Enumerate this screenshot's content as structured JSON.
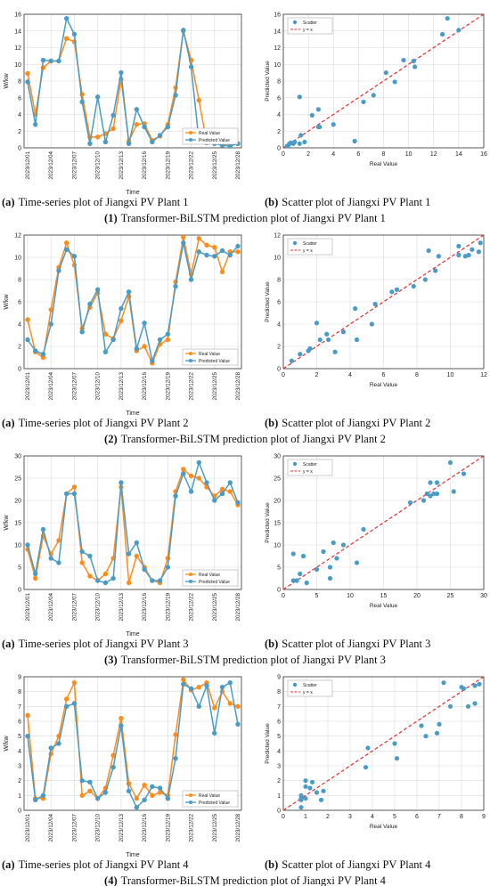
{
  "colors": {
    "real": "#ff8c1a",
    "predicted": "#4a9cc6",
    "scatter": "#4a9cc6",
    "ideal": "#e03030",
    "grid": "#d9d9d9",
    "axis": "#333333"
  },
  "rows": [
    {
      "row_caption_num": "(1)",
      "row_caption_text": "Transformer-BiLSTM prediction plot of Jiangxi PV Plant 1",
      "ts_caption_letter": "(a)",
      "ts_caption_text": "Time-series plot of Jiangxi PV Plant 1",
      "sc_caption_letter": "(b)",
      "sc_caption_text": "Scatter plot of Jiangxi PV Plant 1"
    },
    {
      "row_caption_num": "(2)",
      "row_caption_text": "Transformer-BiLSTM prediction plot of Jiangxi PV Plant 2",
      "ts_caption_letter": "(a)",
      "ts_caption_text": "Time-series plot of Jiangxi PV Plant 2",
      "sc_caption_letter": "(b)",
      "sc_caption_text": "Scatter plot of Jiangxi PV Plant 2"
    },
    {
      "row_caption_num": "(3)",
      "row_caption_text": "Transformer-BiLSTM prediction plot of Jiangxi PV Plant 3",
      "ts_caption_letter": "(a)",
      "ts_caption_text": "Time-series plot of Jiangxi PV Plant 3",
      "sc_caption_letter": "(b)",
      "sc_caption_text": "Scatter plot of Jiangxi PV Plant 3"
    },
    {
      "row_caption_num": "(4)",
      "row_caption_text": "Transformer-BiLSTM prediction plot of Jiangxi PV Plant 4",
      "ts_caption_letter": "(a)",
      "ts_caption_text": "Time-series plot of Jiangxi PV Plant 4",
      "sc_caption_letter": "(b)",
      "sc_caption_text": "Scatter plot of Jiangxi PV Plant 4"
    }
  ],
  "chart_data": [
    {
      "type": "line",
      "panel": "1a",
      "xlabel": "Time",
      "ylabel": "W/kw",
      "ylim": [
        0,
        16
      ],
      "yticks": [
        0,
        2,
        4,
        6,
        8,
        10,
        12,
        14,
        16
      ],
      "xticks": [
        "2023/12/01",
        "2023/12/04",
        "2023/12/07",
        "2023/12/10",
        "2023/12/13",
        "2023/12/16",
        "2023/12/19",
        "2023/12/22",
        "2023/12/25",
        "2023/12/28"
      ],
      "legend": "bottom-right",
      "series": [
        {
          "name": "Real Value",
          "values": [
            8.9,
            4.0,
            9.6,
            10.4,
            10.4,
            13.1,
            12.7,
            6.4,
            1.3,
            1.3,
            1.7,
            2.3,
            8.2,
            0.8,
            2.8,
            2.9,
            0.9,
            1.4,
            2.8,
            7.2,
            14.0,
            10.5,
            5.7,
            0.6,
            0.5,
            0.4,
            0.3,
            0.5
          ]
        },
        {
          "name": "Predicted Value",
          "values": [
            7.9,
            2.8,
            10.5,
            10.4,
            10.4,
            15.5,
            13.6,
            5.5,
            0.5,
            6.1,
            0.7,
            3.9,
            9.0,
            0.5,
            4.6,
            2.5,
            0.7,
            1.5,
            2.5,
            6.3,
            14.1,
            9.7,
            0.8,
            0.6,
            0.5,
            0.3,
            0.2,
            0.5
          ]
        }
      ]
    },
    {
      "type": "scatter",
      "panel": "1b",
      "xlabel": "Real Value",
      "ylabel": "Predicted Value",
      "xlim": [
        0,
        16
      ],
      "ylim": [
        0,
        16
      ],
      "xticks": [
        0,
        2,
        4,
        6,
        8,
        10,
        12,
        14,
        16
      ],
      "yticks": [
        0,
        2,
        4,
        6,
        8,
        10,
        12,
        14,
        16
      ],
      "legend": "top-left",
      "series": [
        {
          "name": "Scatter",
          "x": [
            8.9,
            4.0,
            9.6,
            10.4,
            10.4,
            13.1,
            12.7,
            6.4,
            1.3,
            1.3,
            1.7,
            2.3,
            8.2,
            0.8,
            2.8,
            2.9,
            0.9,
            1.4,
            2.8,
            7.2,
            14.0,
            10.5,
            5.7,
            0.6,
            0.5,
            0.4,
            0.3,
            0.5
          ],
          "y": [
            7.9,
            2.8,
            10.5,
            10.4,
            10.4,
            15.5,
            13.6,
            5.5,
            0.5,
            6.1,
            0.7,
            3.9,
            9.0,
            0.5,
            4.6,
            2.5,
            0.7,
            1.5,
            2.5,
            6.3,
            14.1,
            9.7,
            0.8,
            0.6,
            0.5,
            0.3,
            0.2,
            0.5
          ]
        },
        {
          "name": "y = x",
          "x": [
            0,
            16
          ],
          "y": [
            0,
            16
          ]
        }
      ]
    },
    {
      "type": "line",
      "panel": "2a",
      "xlabel": "Time",
      "ylabel": "W/kw",
      "ylim": [
        0,
        12
      ],
      "yticks": [
        0,
        2,
        4,
        6,
        8,
        10,
        12
      ],
      "xticks": [
        "2023/12/01",
        "2023/12/04",
        "2023/12/07",
        "2023/12/10",
        "2023/12/13",
        "2023/12/16",
        "2023/12/19",
        "2023/12/22",
        "2023/12/25",
        "2023/12/28"
      ],
      "legend": "bottom-right",
      "series": [
        {
          "name": "Real Value",
          "values": [
            4.4,
            1.5,
            1.0,
            5.3,
            9.1,
            11.3,
            9.3,
            3.6,
            5.5,
            6.8,
            3.1,
            2.7,
            4.3,
            6.5,
            1.6,
            2.0,
            0.5,
            2.2,
            2.6,
            7.8,
            11.8,
            8.5,
            11.7,
            11.1,
            10.9,
            8.7,
            10.5,
            10.5
          ]
        },
        {
          "name": "Predicted Value",
          "values": [
            2.6,
            1.6,
            1.3,
            4.0,
            8.8,
            10.7,
            10.1,
            3.3,
            5.8,
            7.1,
            1.5,
            2.6,
            5.4,
            6.9,
            1.8,
            4.1,
            0.7,
            2.6,
            3.1,
            7.4,
            11.3,
            8.0,
            10.5,
            10.2,
            10.1,
            10.6,
            10.2,
            11.0
          ]
        }
      ]
    },
    {
      "type": "scatter",
      "panel": "2b",
      "xlabel": "Real Value",
      "ylabel": "Predicted Value",
      "xlim": [
        0,
        12
      ],
      "ylim": [
        0,
        12
      ],
      "xticks": [
        0,
        2,
        4,
        6,
        8,
        10,
        12
      ],
      "yticks": [
        0,
        2,
        4,
        6,
        8,
        10,
        12
      ],
      "legend": "top-left",
      "series": [
        {
          "name": "Scatter",
          "x": [
            4.4,
            1.5,
            1.0,
            5.3,
            9.1,
            11.3,
            9.3,
            3.6,
            5.5,
            6.8,
            3.1,
            2.7,
            4.3,
            6.5,
            1.6,
            2.0,
            0.5,
            2.2,
            2.6,
            7.8,
            11.8,
            8.5,
            11.7,
            11.1,
            10.9,
            8.7,
            10.5,
            10.5
          ],
          "y": [
            2.6,
            1.6,
            1.3,
            4.0,
            8.8,
            10.7,
            10.1,
            3.3,
            5.8,
            7.1,
            1.5,
            2.6,
            5.4,
            6.9,
            1.8,
            4.1,
            0.7,
            2.6,
            3.1,
            7.4,
            11.3,
            8.0,
            10.5,
            10.2,
            10.1,
            10.6,
            10.2,
            11.0
          ]
        },
        {
          "name": "y = x",
          "x": [
            0,
            12
          ],
          "y": [
            0,
            12
          ]
        }
      ]
    },
    {
      "type": "line",
      "panel": "3a",
      "xlabel": "Time",
      "ylabel": "W/kw",
      "ylim": [
        0,
        30
      ],
      "yticks": [
        0,
        5,
        10,
        15,
        20,
        25,
        30
      ],
      "xticks": [
        "2023/12/01",
        "2023/12/04",
        "2023/12/07",
        "2023/12/10",
        "2023/12/13",
        "2023/12/16",
        "2023/12/19",
        "2023/12/22",
        "2023/12/25",
        "2023/12/28"
      ],
      "legend": "bottom-right",
      "series": [
        {
          "name": "Real Value",
          "values": [
            9.0,
            2.5,
            12.0,
            8.0,
            11.0,
            21.5,
            23.0,
            6.0,
            3.0,
            2.0,
            3.5,
            7.0,
            23.0,
            1.5,
            7.5,
            5.0,
            2.0,
            1.5,
            7.0,
            22.0,
            27.0,
            25.5,
            25.0,
            23.0,
            21.0,
            22.5,
            22.0,
            19.0
          ]
        },
        {
          "name": "Predicted Value",
          "values": [
            10.0,
            3.5,
            13.5,
            7.0,
            6.0,
            21.5,
            21.5,
            8.5,
            7.5,
            2.0,
            1.5,
            2.5,
            24.0,
            8.0,
            10.5,
            4.5,
            2.0,
            2.0,
            5.0,
            21.0,
            26.0,
            22.0,
            28.5,
            24.0,
            20.0,
            21.5,
            24.0,
            19.5
          ]
        }
      ]
    },
    {
      "type": "scatter",
      "panel": "3b",
      "xlabel": "Real Value",
      "ylabel": "Predicted Value",
      "xlim": [
        0,
        30
      ],
      "ylim": [
        0,
        30
      ],
      "xticks": [
        0,
        5,
        10,
        15,
        20,
        25,
        30
      ],
      "yticks": [
        0,
        5,
        10,
        15,
        20,
        25,
        30
      ],
      "legend": "top-left",
      "series": [
        {
          "name": "Scatter",
          "x": [
            9.0,
            2.5,
            12.0,
            8.0,
            11.0,
            21.5,
            23.0,
            6.0,
            3.0,
            2.0,
            3.5,
            7.0,
            23.0,
            1.5,
            7.5,
            5.0,
            2.0,
            1.5,
            7.0,
            22.0,
            27.0,
            25.5,
            25.0,
            23.0,
            21.0,
            22.5,
            22.0,
            19.0
          ],
          "y": [
            10.0,
            3.5,
            13.5,
            7.0,
            6.0,
            21.5,
            21.5,
            8.5,
            7.5,
            2.0,
            1.5,
            2.5,
            24.0,
            8.0,
            10.5,
            4.5,
            2.0,
            2.0,
            5.0,
            21.0,
            26.0,
            22.0,
            28.5,
            24.0,
            20.0,
            21.5,
            24.0,
            19.5
          ]
        },
        {
          "name": "y = x",
          "x": [
            0,
            30
          ],
          "y": [
            0,
            30
          ]
        }
      ]
    },
    {
      "type": "line",
      "panel": "4a",
      "xlabel": "Time",
      "ylabel": "W/kw",
      "ylim": [
        0,
        9
      ],
      "yticks": [
        0,
        1,
        2,
        3,
        4,
        5,
        6,
        7,
        8,
        9
      ],
      "xticks": [
        "2023/12/01",
        "2023/12/04",
        "2023/12/07",
        "2023/12/10",
        "2023/12/13",
        "2023/12/16",
        "2023/12/19",
        "2023/12/22",
        "2023/12/25",
        "2023/12/28"
      ],
      "legend": "bottom-right",
      "series": [
        {
          "name": "Real Value",
          "values": [
            6.4,
            0.8,
            0.8,
            3.8,
            5.0,
            7.5,
            8.6,
            1.0,
            1.3,
            0.8,
            1.5,
            3.7,
            6.2,
            1.8,
            0.8,
            1.7,
            1.0,
            1.2,
            1.0,
            5.1,
            8.8,
            8.1,
            8.3,
            8.6,
            6.9,
            8.0,
            7.2,
            7.0
          ]
        },
        {
          "name": "Predicted Value",
          "values": [
            5.0,
            0.7,
            1.0,
            4.2,
            4.5,
            7.0,
            7.2,
            2.0,
            1.9,
            0.8,
            1.2,
            2.9,
            5.7,
            1.3,
            0.2,
            0.7,
            1.6,
            1.5,
            0.8,
            3.5,
            8.5,
            8.2,
            7.0,
            8.4,
            5.2,
            8.3,
            8.6,
            5.8
          ]
        }
      ]
    },
    {
      "type": "scatter",
      "panel": "4b",
      "xlabel": "Real Value",
      "ylabel": "Predicted Value",
      "xlim": [
        0,
        9
      ],
      "ylim": [
        0,
        9
      ],
      "xticks": [
        0,
        1,
        2,
        3,
        4,
        5,
        6,
        7,
        8,
        9
      ],
      "yticks": [
        0,
        1,
        2,
        3,
        4,
        5,
        6,
        7,
        8,
        9
      ],
      "legend": "top-left",
      "series": [
        {
          "name": "Scatter",
          "x": [
            6.4,
            0.8,
            0.8,
            3.8,
            5.0,
            7.5,
            8.6,
            1.0,
            1.3,
            0.8,
            1.5,
            3.7,
            6.2,
            1.8,
            0.8,
            1.7,
            1.0,
            1.2,
            1.0,
            5.1,
            8.8,
            8.1,
            8.3,
            8.6,
            6.9,
            8.0,
            7.2,
            7.0
          ],
          "y": [
            5.0,
            0.7,
            1.0,
            4.2,
            4.5,
            7.0,
            7.2,
            2.0,
            1.9,
            0.8,
            1.2,
            2.9,
            5.7,
            1.3,
            0.2,
            0.7,
            1.6,
            1.5,
            0.8,
            3.5,
            8.5,
            8.2,
            7.0,
            8.4,
            5.2,
            8.3,
            8.6,
            5.8
          ]
        },
        {
          "name": "y = x",
          "x": [
            0,
            9
          ],
          "y": [
            0,
            9
          ]
        }
      ]
    }
  ]
}
